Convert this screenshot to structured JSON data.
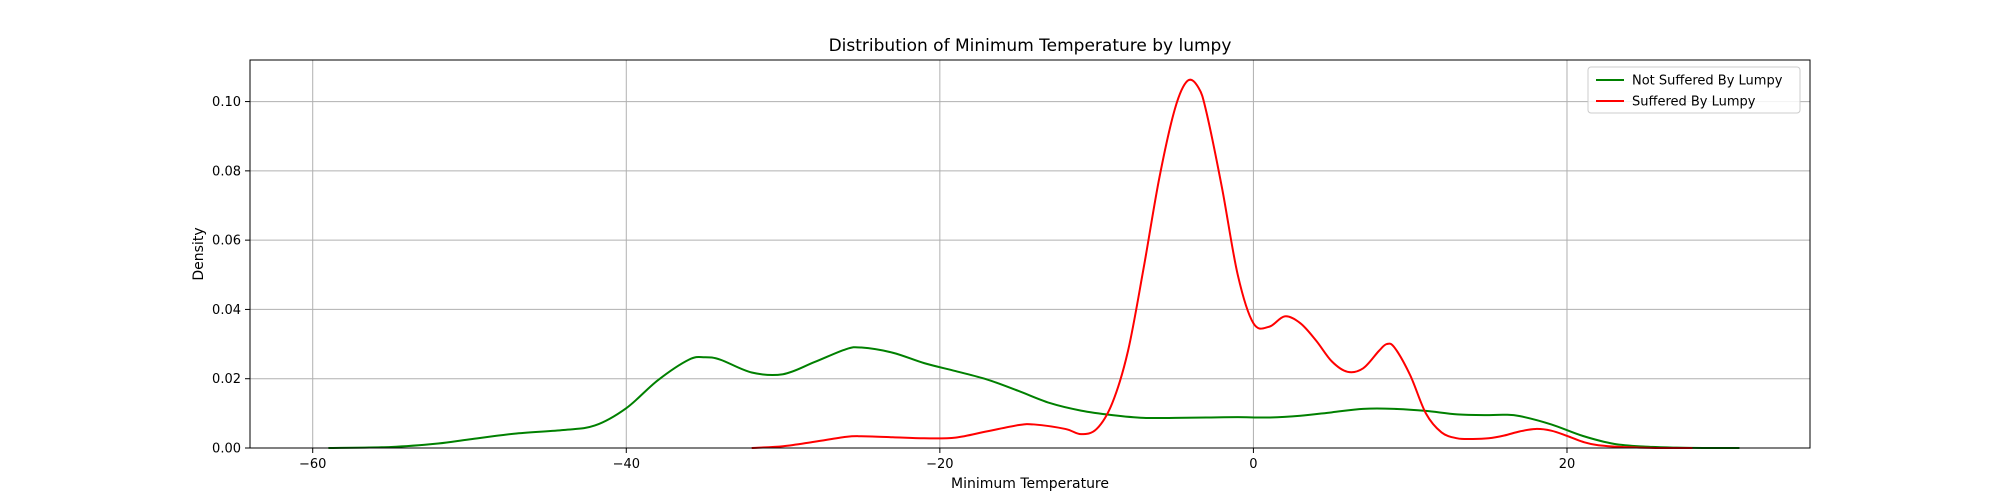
{
  "chart_data": {
    "type": "line",
    "title": "Distribution of Minimum Temperature by lumpy",
    "xlabel": "Minimum Temperature",
    "ylabel": "Density",
    "xlim": [
      -64,
      35.5
    ],
    "ylim": [
      0,
      0.112
    ],
    "xticks": [
      -60,
      -40,
      -20,
      0,
      20
    ],
    "xtick_labels": [
      "−60",
      "−40",
      "−20",
      "0",
      "20"
    ],
    "yticks": [
      0.0,
      0.02,
      0.04,
      0.06,
      0.08,
      0.1
    ],
    "ytick_labels": [
      "0.00",
      "0.02",
      "0.04",
      "0.06",
      "0.08",
      "0.10"
    ],
    "grid": true,
    "legend_position": "top-right",
    "series": [
      {
        "name": "Not Suffered By Lumpy",
        "color": "#008000",
        "x": [
          -59,
          -55,
          -52,
          -50,
          -47,
          -44,
          -42,
          -40,
          -38,
          -36,
          -35,
          -34,
          -32,
          -30,
          -28,
          -26,
          -25,
          -23,
          -21,
          -19,
          -17,
          -15,
          -13,
          -11,
          -9,
          -7,
          -5,
          -3,
          -1,
          1,
          3,
          5,
          7,
          9,
          11,
          13,
          15,
          16,
          17,
          19,
          21,
          23,
          25,
          27,
          29,
          31
        ],
        "y": [
          0.0,
          0.0003,
          0.0013,
          0.0025,
          0.0042,
          0.0052,
          0.0065,
          0.0115,
          0.0195,
          0.0255,
          0.0262,
          0.0255,
          0.0218,
          0.0213,
          0.0248,
          0.0285,
          0.029,
          0.0275,
          0.0245,
          0.0222,
          0.0198,
          0.0165,
          0.013,
          0.0108,
          0.0095,
          0.0087,
          0.0087,
          0.0088,
          0.0089,
          0.0088,
          0.0093,
          0.0103,
          0.0113,
          0.0113,
          0.0107,
          0.0097,
          0.0095,
          0.0096,
          0.0092,
          0.0068,
          0.0035,
          0.0012,
          0.0004,
          0.0001,
          0.0,
          0.0
        ]
      },
      {
        "name": "Suffered By Lumpy",
        "color": "#ff0000",
        "x": [
          -32,
          -30,
          -28,
          -26,
          -25,
          -23,
          -21,
          -19,
          -17,
          -15,
          -14,
          -12,
          -11,
          -10,
          -9,
          -8,
          -7,
          -6,
          -5,
          -4.2,
          -3.5,
          -3,
          -2,
          -1,
          0,
          1,
          2,
          3,
          4,
          5,
          6,
          7,
          8,
          8.5,
          9,
          10,
          11,
          12,
          13,
          14,
          15,
          16,
          17,
          18,
          19,
          20,
          21,
          22,
          24,
          26,
          28
        ],
        "y": [
          0.0,
          0.0005,
          0.0018,
          0.0032,
          0.0034,
          0.0031,
          0.0028,
          0.003,
          0.0048,
          0.0066,
          0.0068,
          0.0055,
          0.004,
          0.0055,
          0.013,
          0.028,
          0.052,
          0.078,
          0.098,
          0.106,
          0.104,
          0.097,
          0.075,
          0.05,
          0.036,
          0.035,
          0.038,
          0.036,
          0.031,
          0.025,
          0.022,
          0.023,
          0.028,
          0.03,
          0.029,
          0.021,
          0.01,
          0.0045,
          0.0028,
          0.0026,
          0.0028,
          0.0036,
          0.0048,
          0.0055,
          0.005,
          0.0035,
          0.0018,
          0.0008,
          0.0002,
          0.0,
          0.0
        ]
      }
    ]
  }
}
